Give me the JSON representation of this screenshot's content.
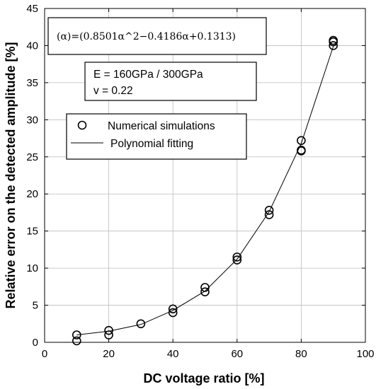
{
  "chart_data": {
    "type": "scatter",
    "xlabel": "DC voltage ratio [%]",
    "ylabel": "Relative error on the detected amplitude [%]",
    "xlim": [
      0,
      100
    ],
    "ylim": [
      0,
      45
    ],
    "x_ticks": [
      "0",
      "20",
      "40",
      "60",
      "80",
      "100"
    ],
    "y_ticks": [
      "0",
      "5",
      "10",
      "15",
      "20",
      "25",
      "30",
      "35",
      "40",
      "45"
    ],
    "grid": true,
    "formula": "(α)=(0.8501α^2−0.4186α+0.1313)",
    "params": [
      "E = 160GPa /  300GPa",
      "v = 0.22"
    ],
    "legend": {
      "placement": "upper-left",
      "entries": [
        "Numerical simulations",
        "Polynomial fitting"
      ]
    },
    "series": [
      {
        "name": "Numerical simulations",
        "marker": "circle",
        "x": [
          10,
          10,
          20,
          20,
          30,
          40,
          40,
          50,
          50,
          60,
          60,
          70,
          70,
          80,
          80,
          80,
          90,
          90,
          90
        ],
        "y": [
          0.2,
          1.0,
          1.0,
          1.6,
          2.5,
          4.0,
          4.5,
          6.8,
          7.4,
          11.1,
          11.5,
          17.2,
          17.8,
          25.8,
          25.9,
          27.2,
          40.0,
          40.5,
          40.7
        ]
      },
      {
        "name": "Polynomial fitting",
        "marker": "line",
        "x": [
          10,
          20,
          30,
          40,
          50,
          60,
          70,
          80,
          90
        ],
        "y": [
          1.0,
          1.5,
          2.4,
          4.3,
          6.9,
          11.2,
          17.6,
          26.8,
          39.9
        ]
      }
    ]
  }
}
